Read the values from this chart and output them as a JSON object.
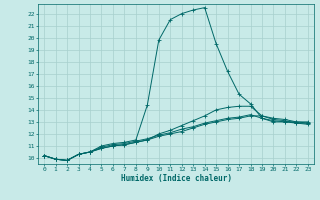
{
  "xlabel": "Humidex (Indice chaleur)",
  "ylabel": "",
  "bg_color": "#c8eae8",
  "grid_color": "#a8d0ce",
  "line_color": "#006868",
  "xlim": [
    -0.5,
    23.5
  ],
  "ylim": [
    9.5,
    22.8
  ],
  "xticks": [
    0,
    1,
    2,
    3,
    4,
    5,
    6,
    7,
    8,
    9,
    10,
    11,
    12,
    13,
    14,
    15,
    16,
    17,
    18,
    19,
    20,
    21,
    22,
    23
  ],
  "yticks": [
    10,
    11,
    12,
    13,
    14,
    15,
    16,
    17,
    18,
    19,
    20,
    21,
    22
  ],
  "line1_x": [
    0,
    1,
    2,
    3,
    4,
    5,
    6,
    7,
    8,
    9,
    10,
    11,
    12,
    13,
    14,
    15,
    16,
    17,
    18,
    19,
    20,
    21,
    22,
    23
  ],
  "line1_y": [
    10.2,
    9.9,
    9.8,
    10.3,
    10.5,
    10.8,
    11.0,
    11.1,
    11.3,
    11.5,
    11.8,
    12.0,
    12.2,
    12.5,
    12.8,
    13.0,
    13.2,
    13.3,
    13.5,
    13.5,
    13.3,
    13.2,
    13.0,
    13.0
  ],
  "line2_x": [
    0,
    1,
    2,
    3,
    4,
    5,
    6,
    7,
    8,
    9,
    10,
    11,
    12,
    13,
    14,
    15,
    16,
    17,
    18,
    19,
    20,
    21,
    22,
    23
  ],
  "line2_y": [
    10.2,
    9.9,
    9.8,
    10.3,
    10.5,
    11.0,
    11.2,
    11.3,
    11.5,
    14.4,
    19.8,
    21.5,
    22.0,
    22.3,
    22.5,
    19.5,
    17.2,
    15.3,
    14.5,
    13.3,
    13.0,
    13.0,
    13.0,
    12.9
  ],
  "line3_x": [
    0,
    1,
    2,
    3,
    4,
    5,
    6,
    7,
    8,
    9,
    10,
    11,
    12,
    13,
    14,
    15,
    16,
    17,
    18,
    19,
    20,
    21,
    22,
    23
  ],
  "line3_y": [
    10.2,
    9.9,
    9.8,
    10.3,
    10.5,
    10.8,
    11.0,
    11.1,
    11.3,
    11.5,
    12.0,
    12.3,
    12.7,
    13.1,
    13.5,
    14.0,
    14.2,
    14.3,
    14.3,
    13.5,
    13.2,
    13.1,
    12.9,
    12.9
  ],
  "line4_x": [
    0,
    1,
    2,
    3,
    4,
    5,
    6,
    7,
    8,
    9,
    10,
    11,
    12,
    13,
    14,
    15,
    16,
    17,
    18,
    19,
    20,
    21,
    22,
    23
  ],
  "line4_y": [
    10.2,
    9.9,
    9.8,
    10.3,
    10.5,
    10.9,
    11.1,
    11.2,
    11.4,
    11.6,
    11.9,
    12.1,
    12.4,
    12.6,
    12.9,
    13.1,
    13.3,
    13.4,
    13.6,
    13.3,
    13.1,
    13.0,
    12.9,
    12.8
  ],
  "tick_fontsize": 4.5,
  "xlabel_fontsize": 5.5
}
